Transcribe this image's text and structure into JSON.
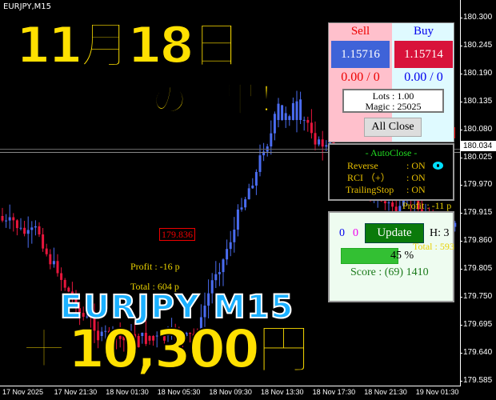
{
  "symbol": "EURJPY,M15",
  "overlay": {
    "date": "11月18日",
    "subtitle": "の結果！",
    "pair": "EURJPY  M15",
    "result": "＋10,300円"
  },
  "price_axis": [
    "180.300",
    "180.245",
    "180.190",
    "180.135",
    "180.080",
    "180.025",
    "179.970",
    "179.915",
    "179.860",
    "179.805",
    "179.750",
    "179.695",
    "179.640",
    "179.585"
  ],
  "current_price": "180.034",
  "time_axis": [
    "17 Nov 2025",
    "17 Nov 21:30",
    "18 Nov 01:30",
    "18 Nov 05:30",
    "18 Nov 09:30",
    "18 Nov 13:30",
    "18 Nov 17:30",
    "18 Nov 21:30",
    "19 Nov 01:30"
  ],
  "chart_labels": {
    "profit1": "Profit : -16 p",
    "total1": "Total : 604 p",
    "profit2": "Profit : -11 p",
    "total2": "Total : 593",
    "price_tag": "179.836",
    "price_tag2": "180"
  },
  "trade_panel": {
    "sell_label": "Sell",
    "buy_label": "Buy",
    "sell_price": "1.15716",
    "buy_price": "1.15714",
    "sell_pl": "0.00 / 0",
    "buy_pl": "0.00 / 0",
    "lots": "Lots   : 1.00",
    "magic": "Magic : 25025",
    "all_close": "All Close"
  },
  "autoclose": {
    "title": "- AutoClose -",
    "rows": [
      {
        "label": "Reverse",
        "value": ": ON"
      },
      {
        "label": "RCI （+）",
        "value": ": ON"
      },
      {
        "label": "TrailingStop",
        "value": ": ON"
      }
    ]
  },
  "score_panel": {
    "count_blue": "0",
    "count_magenta": "0",
    "update": "Update",
    "h": "H: 3",
    "progress_percent": 45,
    "progress_label": "45 %",
    "score": "Score : (69) 1410"
  },
  "colors": {
    "bull": "#4a6cf0",
    "bear": "#e8163c",
    "accent_yellow": "#ffe000",
    "pair_blue": "#1ab0ff"
  }
}
